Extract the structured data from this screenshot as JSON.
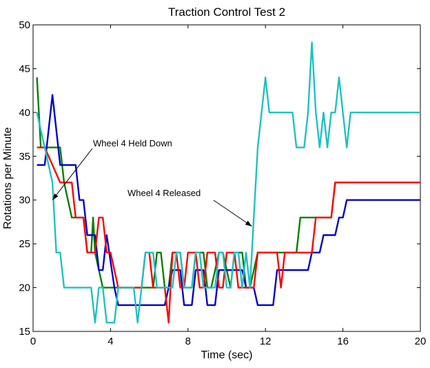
{
  "chart_data": {
    "type": "line",
    "title": "Traction Control Test 2",
    "xlabel": "Time (sec)",
    "ylabel": "Rotations per Minute",
    "xlim": [
      0,
      20
    ],
    "ylim": [
      15,
      50
    ],
    "xticks": [
      0,
      4,
      8,
      12,
      16,
      20
    ],
    "yticks": [
      15,
      20,
      25,
      30,
      35,
      40,
      45,
      50
    ],
    "grid": false,
    "series": [
      {
        "color": "#008000",
        "x": [
          0.2,
          0.4,
          1.4,
          1.6,
          2.0,
          2.6,
          2.8,
          3.0,
          3.1,
          3.2,
          3.4,
          3.6,
          4.0,
          6.2,
          6.4,
          6.6,
          6.8,
          7.0,
          7.2,
          7.6,
          7.8,
          8.2,
          8.4,
          8.8,
          9.0,
          9.2,
          9.6,
          9.8,
          10.2,
          10.4,
          10.8,
          11.0,
          11.2,
          11.6,
          11.8,
          13.6,
          13.8,
          14.4,
          14.6,
          15.4,
          15.6,
          20.0
        ],
        "y": [
          44,
          36,
          36,
          32,
          28,
          28,
          24,
          24,
          28,
          24,
          22,
          20,
          20,
          20,
          24,
          24,
          20,
          20,
          24,
          24,
          20,
          20,
          24,
          24,
          20,
          20,
          24,
          24,
          20,
          24,
          24,
          20,
          20,
          24,
          24,
          24,
          28,
          28,
          28,
          28,
          32,
          32
        ]
      },
      {
        "color": "#0000cc",
        "x": [
          0.2,
          0.6,
          1.0,
          1.2,
          1.4,
          2.2,
          2.4,
          2.6,
          2.8,
          3.2,
          3.4,
          3.6,
          3.8,
          4.2,
          4.4,
          6.8,
          7.0,
          7.2,
          7.6,
          7.8,
          8.2,
          8.4,
          8.8,
          9.0,
          9.4,
          9.6,
          10.8,
          11.0,
          11.4,
          11.6,
          12.4,
          12.6,
          14.2,
          14.4,
          14.8,
          15.0,
          15.6,
          15.8,
          16.0,
          16.2,
          20.0
        ],
        "y": [
          34,
          34,
          42,
          38,
          34,
          34,
          30,
          30,
          26,
          26,
          22,
          22,
          26,
          20,
          18,
          18,
          20,
          22,
          22,
          18,
          18,
          22,
          22,
          18,
          18,
          22,
          22,
          20,
          20,
          18,
          18,
          22,
          22,
          24,
          24,
          26,
          26,
          28,
          28,
          30,
          30
        ]
      },
      {
        "color": "#ff0000",
        "x": [
          0.2,
          0.6,
          1.4,
          2.0,
          2.2,
          2.6,
          2.8,
          3.2,
          3.4,
          3.6,
          3.8,
          4.0,
          4.2,
          4.4,
          5.6,
          5.8,
          6.0,
          6.2,
          6.4,
          6.6,
          6.8,
          7.0,
          7.2,
          7.4,
          7.6,
          7.8,
          8.0,
          8.4,
          8.6,
          8.8,
          9.0,
          9.4,
          9.6,
          9.8,
          10.0,
          10.4,
          10.6,
          10.8,
          11.0,
          11.4,
          11.6,
          11.8,
          12.6,
          12.8,
          13.0,
          13.2,
          14.4,
          14.6,
          15.4,
          15.6,
          20.0
        ],
        "y": [
          36,
          36,
          32,
          32,
          28,
          28,
          24,
          24,
          28,
          28,
          24,
          24,
          22,
          20,
          20,
          24,
          24,
          20,
          20,
          20,
          20,
          16,
          24,
          24,
          20,
          20,
          24,
          24,
          20,
          20,
          24,
          24,
          20,
          20,
          24,
          24,
          20,
          20,
          20,
          20,
          24,
          24,
          24,
          20,
          24,
          24,
          24,
          28,
          28,
          32,
          32
        ]
      },
      {
        "color": "#20c0c0",
        "x": [
          0.2,
          0.4,
          0.6,
          1.0,
          1.2,
          1.4,
          1.6,
          3.0,
          3.2,
          3.4,
          3.6,
          3.8,
          4.2,
          4.4,
          5.2,
          5.4,
          5.6,
          5.8,
          6.2,
          6.4,
          6.6,
          6.8,
          7.2,
          7.4,
          7.6,
          7.8,
          8.2,
          8.4,
          8.6,
          8.8,
          9.0,
          9.4,
          9.6,
          9.8,
          10.0,
          10.2,
          10.4,
          10.6,
          10.8,
          11.0,
          11.2,
          11.4,
          11.6,
          11.8,
          12.0,
          12.2,
          13.4,
          13.6,
          14.0,
          14.2,
          14.4,
          14.6,
          14.8,
          15.0,
          15.2,
          15.4,
          15.6,
          15.8,
          16.0,
          16.2,
          16.4,
          20.0
        ],
        "y": [
          40,
          38,
          36,
          32,
          24,
          24,
          20,
          20,
          16,
          20,
          20,
          16,
          16,
          20,
          20,
          16,
          20,
          24,
          24,
          20,
          20,
          20,
          20,
          24,
          24,
          20,
          20,
          24,
          24,
          20,
          20,
          20,
          24,
          24,
          20,
          20,
          24,
          24,
          20,
          24,
          20,
          28,
          36,
          40,
          44,
          40,
          40,
          36,
          36,
          40,
          48,
          40,
          36,
          40,
          36,
          40,
          40,
          44,
          40,
          36,
          40,
          40
        ]
      }
    ],
    "annotations": [
      {
        "text": "Wheel 4 Held Down",
        "point": [
          1.0,
          30
        ]
      },
      {
        "text": "Wheel 4 Released",
        "point": [
          11.3,
          27
        ]
      }
    ]
  }
}
